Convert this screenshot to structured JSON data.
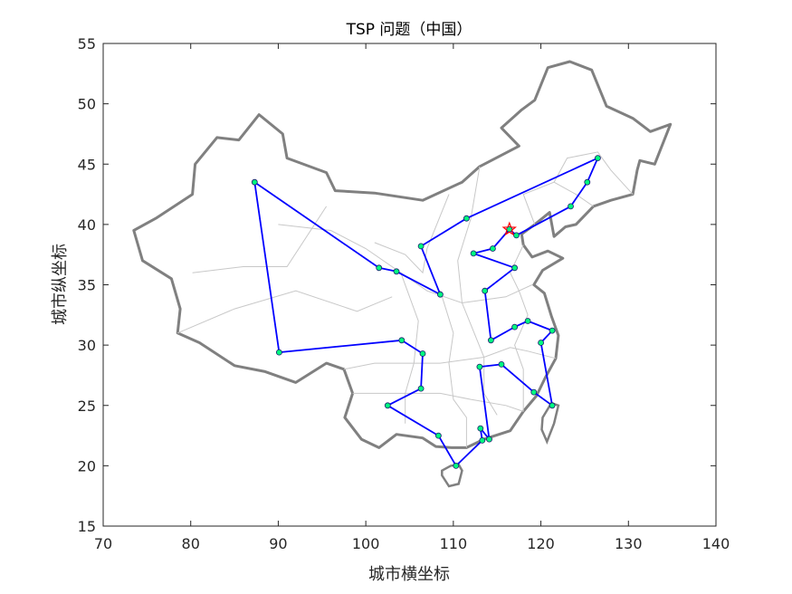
{
  "chart_data": {
    "type": "line",
    "title": "TSP 问题（中国）",
    "xlabel": "城市横坐标",
    "ylabel": "城市纵坐标",
    "xlim": [
      70,
      140
    ],
    "ylim": [
      15,
      55
    ],
    "xticks": [
      70,
      80,
      90,
      100,
      110,
      120,
      130,
      140
    ],
    "yticks": [
      15,
      20,
      25,
      30,
      35,
      40,
      45,
      50,
      55
    ],
    "grid": false,
    "start": {
      "x": 116.4,
      "y": 39.6
    },
    "route": [
      [
        116.4,
        39.6
      ],
      [
        117.2,
        39.1
      ],
      [
        123.4,
        41.5
      ],
      [
        125.3,
        43.5
      ],
      [
        126.5,
        45.5
      ],
      [
        111.5,
        40.5
      ],
      [
        106.3,
        38.2
      ],
      [
        108.5,
        34.2
      ],
      [
        103.5,
        36.1
      ],
      [
        101.5,
        36.4
      ],
      [
        87.3,
        43.5
      ],
      [
        90.1,
        29.4
      ],
      [
        104.1,
        30.4
      ],
      [
        106.5,
        29.3
      ],
      [
        106.3,
        26.4
      ],
      [
        102.5,
        25.0
      ],
      [
        108.3,
        22.5
      ],
      [
        110.3,
        20.0
      ],
      [
        113.3,
        22.1
      ],
      [
        113.1,
        23.1
      ],
      [
        114.1,
        22.2
      ],
      [
        113.0,
        28.2
      ],
      [
        115.5,
        28.4
      ],
      [
        119.2,
        26.1
      ],
      [
        121.3,
        25.0
      ],
      [
        120.0,
        30.2
      ],
      [
        121.3,
        31.2
      ],
      [
        118.5,
        32.0
      ],
      [
        117.0,
        31.5
      ],
      [
        114.3,
        30.4
      ],
      [
        113.6,
        34.5
      ],
      [
        117.0,
        36.4
      ],
      [
        112.3,
        37.6
      ],
      [
        114.5,
        38.0
      ],
      [
        116.4,
        39.6
      ]
    ],
    "colors": {
      "route": "#0000ff",
      "marker": "#00ff7f",
      "marker_edge": "#1a1a6e",
      "start": "#ff0000",
      "border": "#808080",
      "province": "#c8c8c8",
      "axis": "#262626"
    }
  }
}
